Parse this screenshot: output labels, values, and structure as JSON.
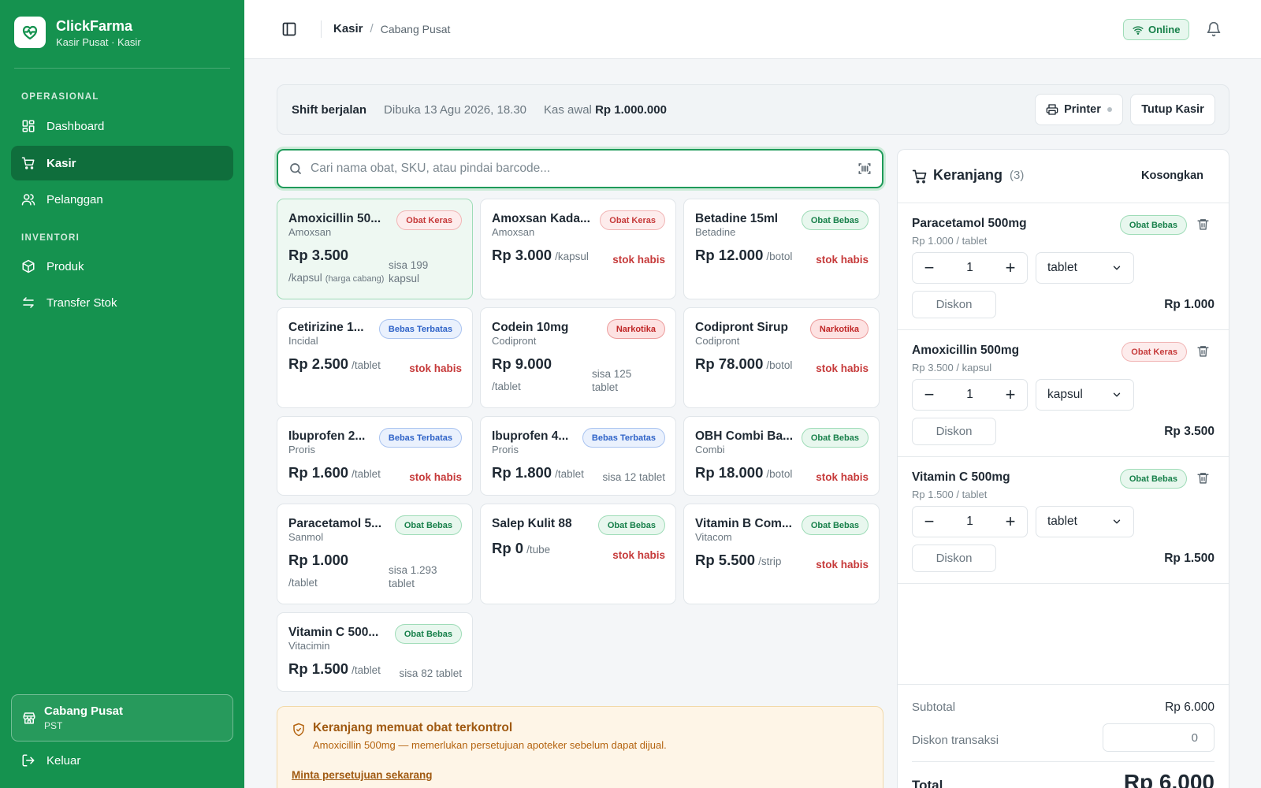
{
  "app": {
    "name": "ClickFarma",
    "subtitle": "Kasir Pusat · Kasir"
  },
  "sidebar": {
    "sections": [
      {
        "title": "OPERASIONAL",
        "items": [
          {
            "label": "Dashboard",
            "icon": "grid-icon"
          },
          {
            "label": "Kasir",
            "icon": "cart-icon",
            "active": true
          },
          {
            "label": "Pelanggan",
            "icon": "users-icon"
          }
        ]
      },
      {
        "title": "INVENTORI",
        "items": [
          {
            "label": "Produk",
            "icon": "box-icon"
          },
          {
            "label": "Transfer Stok",
            "icon": "transfer-icon"
          }
        ]
      }
    ],
    "branch": {
      "name": "Cabang Pusat",
      "code": "PST"
    },
    "logout_label": "Keluar"
  },
  "topbar": {
    "breadcrumb_current": "Kasir",
    "breadcrumb_branch": "Cabang Pusat",
    "status": "Online"
  },
  "shift": {
    "title": "Shift berjalan",
    "opened": "Dibuka 13 Agu 2026, 18.30",
    "cash_label": "Kas awal",
    "cash_value": "Rp 1.000.000",
    "printer_label": "Printer",
    "close_label": "Tutup Kasir"
  },
  "search": {
    "placeholder": "Cari nama obat, SKU, atau pindai barcode...",
    "value": ""
  },
  "products": [
    {
      "name": "Amoxicillin 50...",
      "brand": "Amoxsan",
      "badge": "Obat Keras",
      "badge_type": "keras",
      "price": "Rp 3.500",
      "unit": "/kapsul",
      "unit_note": "(harga cabang)",
      "stock": "sisa 199 kapsul",
      "out": false,
      "selected": true
    },
    {
      "name": "Amoxsan Kada...",
      "brand": "Amoxsan",
      "badge": "Obat Keras",
      "badge_type": "keras",
      "price": "Rp 3.000",
      "unit": "/kapsul",
      "stock": "stok habis",
      "out": true
    },
    {
      "name": "Betadine 15ml",
      "brand": "Betadine",
      "badge": "Obat Bebas",
      "badge_type": "bebas",
      "price": "Rp 12.000",
      "unit": "/botol",
      "stock": "stok habis",
      "out": true
    },
    {
      "name": "Cetirizine 1...",
      "brand": "Incidal",
      "badge": "Bebas Terbatas",
      "badge_type": "terbatas",
      "price": "Rp 2.500",
      "unit": "/tablet",
      "stock": "stok habis",
      "out": true
    },
    {
      "name": "Codein 10mg",
      "brand": "Codipront",
      "badge": "Narkotika",
      "badge_type": "narkotika",
      "price": "Rp 9.000",
      "unit": "/tablet",
      "stock": "sisa 125 tablet",
      "out": false
    },
    {
      "name": "Codipront Sirup",
      "brand": "Codipront",
      "badge": "Narkotika",
      "badge_type": "narkotika",
      "price": "Rp 78.000",
      "unit": "/botol",
      "stock": "stok habis",
      "out": true
    },
    {
      "name": "Ibuprofen 2...",
      "brand": "Proris",
      "badge": "Bebas Terbatas",
      "badge_type": "terbatas",
      "price": "Rp 1.600",
      "unit": "/tablet",
      "stock": "stok habis",
      "out": true
    },
    {
      "name": "Ibuprofen 4...",
      "brand": "Proris",
      "badge": "Bebas Terbatas",
      "badge_type": "terbatas",
      "price": "Rp 1.800",
      "unit": "/tablet",
      "stock": "sisa 12 tablet",
      "out": false
    },
    {
      "name": "OBH Combi Ba...",
      "brand": "Combi",
      "badge": "Obat Bebas",
      "badge_type": "bebas",
      "price": "Rp 18.000",
      "unit": "/botol",
      "stock": "stok habis",
      "out": true
    },
    {
      "name": "Paracetamol 5...",
      "brand": "Sanmol",
      "badge": "Obat Bebas",
      "badge_type": "bebas",
      "price": "Rp 1.000",
      "unit": "/tablet",
      "stock": "sisa 1.293 tablet",
      "out": false
    },
    {
      "name": "Salep Kulit 88",
      "brand": "",
      "badge": "Obat Bebas",
      "badge_type": "bebas",
      "price": "Rp 0",
      "unit": "/tube",
      "stock": "stok habis",
      "out": true
    },
    {
      "name": "Vitamin B Com...",
      "brand": "Vitacom",
      "badge": "Obat Bebas",
      "badge_type": "bebas",
      "price": "Rp 5.500",
      "unit": "/strip",
      "stock": "stok habis",
      "out": true
    },
    {
      "name": "Vitamin C 500...",
      "brand": "Vitacimin",
      "badge": "Obat Bebas",
      "badge_type": "bebas",
      "price": "Rp 1.500",
      "unit": "/tablet",
      "stock": "sisa 82 tablet",
      "out": false
    }
  ],
  "warning": {
    "title": "Keranjang memuat obat terkontrol",
    "desc": "Amoxicillin 500mg — memerlukan persetujuan apoteker sebelum dapat dijual.",
    "link": "Minta persetujuan sekarang"
  },
  "cart": {
    "title": "Keranjang",
    "count": "(3)",
    "clear_label": "Kosongkan",
    "discount_label": "Diskon",
    "items": [
      {
        "name": "Paracetamol 500mg",
        "sub": "Rp 1.000 / tablet",
        "badge": "Obat Bebas",
        "badge_type": "bebas",
        "qty": "1",
        "unit": "tablet",
        "total": "Rp 1.000"
      },
      {
        "name": "Amoxicillin 500mg",
        "sub": "Rp 3.500 / kapsul",
        "badge": "Obat Keras",
        "badge_type": "keras",
        "qty": "1",
        "unit": "kapsul",
        "total": "Rp 3.500"
      },
      {
        "name": "Vitamin C 500mg",
        "sub": "Rp 1.500 / tablet",
        "badge": "Obat Bebas",
        "badge_type": "bebas",
        "qty": "1",
        "unit": "tablet",
        "total": "Rp 1.500"
      }
    ],
    "subtotal_label": "Subtotal",
    "subtotal": "Rp 6.000",
    "discount_trx_label": "Diskon transaksi",
    "discount_trx_value": "0",
    "total_label": "Total",
    "total": "Rp 6.000"
  },
  "colors": {
    "brand": "#15924f",
    "brand_dark": "#0f6e3c",
    "danger": "#c63a3a",
    "warning_bg": "#fef5e7"
  }
}
